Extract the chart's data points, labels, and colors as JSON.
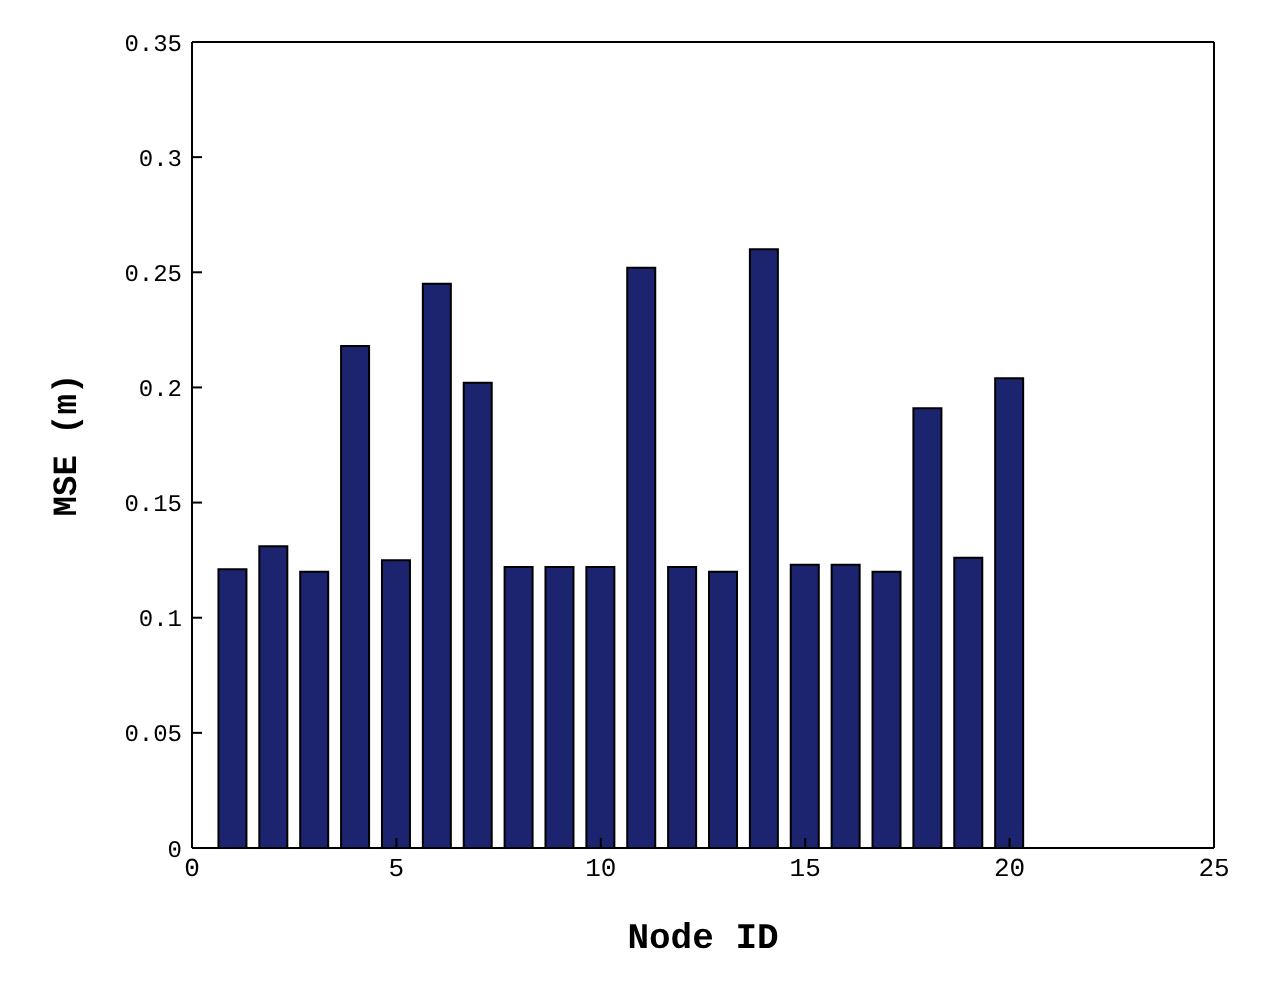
{
  "chart_data": {
    "type": "bar",
    "xlabel": "Node ID",
    "ylabel": "MSE (m)",
    "x": [
      1,
      2,
      3,
      4,
      5,
      6,
      7,
      8,
      9,
      10,
      11,
      12,
      13,
      14,
      15,
      16,
      17,
      18,
      19,
      20
    ],
    "values": [
      0.121,
      0.131,
      0.12,
      0.218,
      0.125,
      0.245,
      0.202,
      0.122,
      0.122,
      0.122,
      0.252,
      0.122,
      0.12,
      0.26,
      0.123,
      0.123,
      0.12,
      0.191,
      0.126,
      0.204
    ],
    "color": "#1c2470",
    "xlim": [
      0,
      25
    ],
    "xticks": [
      0,
      5,
      10,
      15,
      20,
      25
    ],
    "ylim": [
      0,
      0.35
    ],
    "yticks": [
      0,
      0.05,
      0.1,
      0.15,
      0.2,
      0.25,
      0.3,
      0.35
    ],
    "grid": false
  }
}
